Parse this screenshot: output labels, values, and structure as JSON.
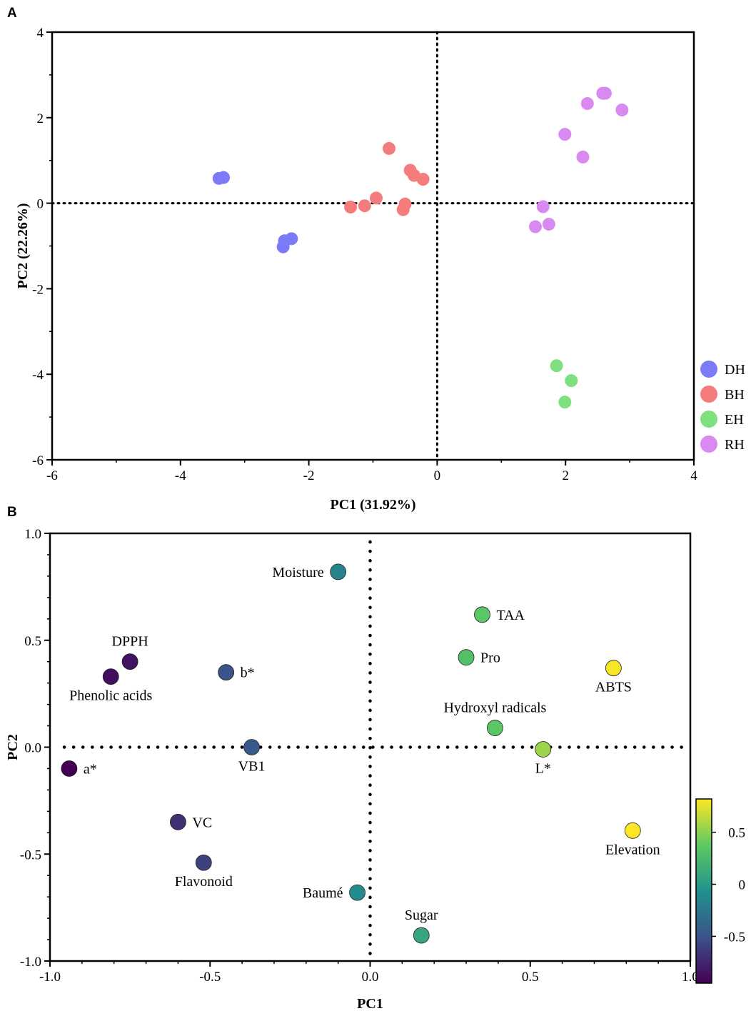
{
  "chart_data": [
    {
      "panel": "A",
      "type": "scatter",
      "title": "",
      "xlabel": "PC1 (31.92%)",
      "ylabel": "PC2 (22.26%)",
      "xlim": [
        -6,
        4
      ],
      "ylim": [
        -6,
        4
      ],
      "xticks": [
        "-6",
        "-4",
        "-2",
        "0",
        "2",
        "4"
      ],
      "yticks": [
        "4",
        "2",
        "0",
        "-2",
        "-4",
        "-6"
      ],
      "xtick_values": [
        -6,
        -4,
        -2,
        0,
        2,
        4
      ],
      "ytick_values": [
        4,
        2,
        0,
        -2,
        -4,
        -6
      ],
      "legend_position": "right-bottom",
      "series": [
        {
          "name": "DH",
          "color": "#7b7bf7",
          "points": [
            [
              -3.4,
              0.58
            ],
            [
              -3.33,
              0.6
            ],
            [
              -2.4,
              -1.02
            ],
            [
              -2.38,
              -0.88
            ],
            [
              -2.27,
              -0.83
            ]
          ]
        },
        {
          "name": "BH",
          "color": "#f47c7c",
          "points": [
            [
              -0.75,
              1.28
            ],
            [
              -0.42,
              0.77
            ],
            [
              -0.36,
              0.65
            ],
            [
              -0.22,
              0.56
            ],
            [
              -0.95,
              0.12
            ],
            [
              -1.13,
              -0.06
            ],
            [
              -1.35,
              -0.09
            ],
            [
              -0.5,
              -0.02
            ],
            [
              -0.53,
              -0.15
            ]
          ]
        },
        {
          "name": "EH",
          "color": "#7ee07e",
          "points": [
            [
              1.86,
              -3.8
            ],
            [
              2.09,
              -4.15
            ],
            [
              1.99,
              -4.65
            ]
          ]
        },
        {
          "name": "RH",
          "color": "#d98af0",
          "points": [
            [
              2.58,
              2.57
            ],
            [
              2.62,
              2.57
            ],
            [
              2.34,
              2.33
            ],
            [
              2.88,
              2.18
            ],
            [
              1.99,
              1.61
            ],
            [
              2.27,
              1.08
            ],
            [
              1.65,
              -0.08
            ],
            [
              1.74,
              -0.49
            ],
            [
              1.53,
              -0.55
            ]
          ]
        }
      ]
    },
    {
      "panel": "B",
      "type": "scatter",
      "title": "",
      "xlabel": "PC1",
      "ylabel": "PC2",
      "xlim": [
        -1.0,
        1.0
      ],
      "ylim": [
        -1.0,
        1.0
      ],
      "xticks": [
        "-1.0",
        "-0.5",
        "0.0",
        "0.5",
        "1.0"
      ],
      "yticks": [
        "1.0",
        "0.5",
        "0.0",
        "-0.5",
        "-1.0"
      ],
      "xtick_values": [
        -1.0,
        -0.5,
        0.0,
        0.5,
        1.0
      ],
      "ytick_values": [
        1.0,
        0.5,
        0.0,
        -0.5,
        -1.0
      ],
      "colorbar": {
        "min": -0.95,
        "max": 0.82,
        "ticks": [
          "0.5",
          "0",
          "-0.5"
        ],
        "tick_values": [
          0.5,
          0,
          -0.5
        ]
      },
      "points": [
        {
          "label": "Moisture",
          "x": -0.1,
          "y": 0.82,
          "c": -0.15,
          "label_pos": "left"
        },
        {
          "label": "TAA",
          "x": 0.35,
          "y": 0.62,
          "c": 0.35,
          "label_pos": "right"
        },
        {
          "label": "DPPH",
          "x": -0.75,
          "y": 0.4,
          "c": -0.85,
          "label_pos": "above"
        },
        {
          "label": "Phenolic acids",
          "x": -0.81,
          "y": 0.33,
          "c": -0.88,
          "label_pos": "below"
        },
        {
          "label": "b*",
          "x": -0.45,
          "y": 0.35,
          "c": -0.5,
          "label_pos": "right"
        },
        {
          "label": "Pro",
          "x": 0.3,
          "y": 0.42,
          "c": 0.3,
          "label_pos": "right"
        },
        {
          "label": "ABTS",
          "x": 0.76,
          "y": 0.37,
          "c": 0.8,
          "label_pos": "below"
        },
        {
          "label": "Hydroxyl radicals",
          "x": 0.39,
          "y": 0.09,
          "c": 0.35,
          "label_pos": "above"
        },
        {
          "label": "VB1",
          "x": -0.37,
          "y": 0.0,
          "c": -0.45,
          "label_pos": "below"
        },
        {
          "label": "L*",
          "x": 0.54,
          "y": -0.01,
          "c": 0.55,
          "label_pos": "below"
        },
        {
          "label": "a*",
          "x": -0.94,
          "y": -0.1,
          "c": -0.95,
          "label_pos": "right"
        },
        {
          "label": "VC",
          "x": -0.6,
          "y": -0.35,
          "c": -0.7,
          "label_pos": "right"
        },
        {
          "label": "Flavonoid",
          "x": -0.52,
          "y": -0.54,
          "c": -0.6,
          "label_pos": "below"
        },
        {
          "label": "Elevation",
          "x": 0.82,
          "y": -0.39,
          "c": 0.82,
          "label_pos": "below"
        },
        {
          "label": "Baumé",
          "x": -0.04,
          "y": -0.68,
          "c": -0.1,
          "label_pos": "left"
        },
        {
          "label": "Sugar",
          "x": 0.16,
          "y": -0.88,
          "c": 0.1,
          "label_pos": "above"
        }
      ]
    }
  ]
}
